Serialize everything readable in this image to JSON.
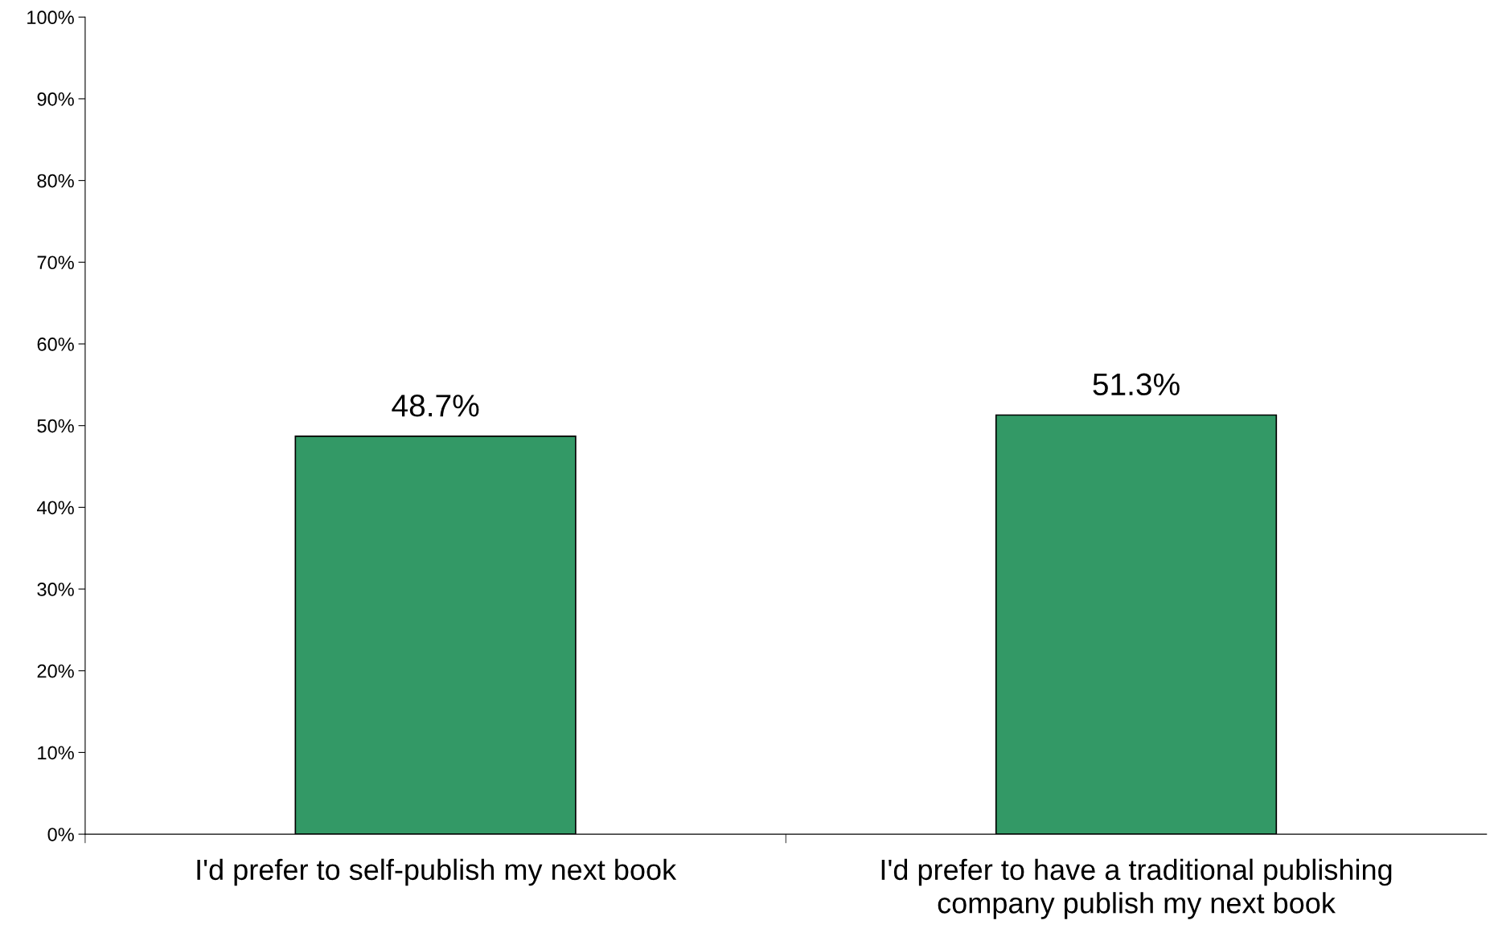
{
  "chart_data": {
    "type": "bar",
    "categories": [
      "I'd prefer to self-publish my next book",
      "I'd prefer to have a traditional publishing\ncompany publish my next book"
    ],
    "values": [
      48.7,
      51.3
    ],
    "value_labels": [
      "48.7%",
      "51.3%"
    ],
    "color": "#339966",
    "ylim": [
      0,
      100
    ],
    "yticks": [
      {
        "value": 0,
        "label": "0%"
      },
      {
        "value": 10,
        "label": "10%"
      },
      {
        "value": 20,
        "label": "20%"
      },
      {
        "value": 30,
        "label": "30%"
      },
      {
        "value": 40,
        "label": "40%"
      },
      {
        "value": 50,
        "label": "50%"
      },
      {
        "value": 60,
        "label": "60%"
      },
      {
        "value": 70,
        "label": "70%"
      },
      {
        "value": 80,
        "label": "80%"
      },
      {
        "value": 90,
        "label": "90%"
      },
      {
        "value": 100,
        "label": "100%"
      }
    ],
    "grid": false,
    "legend": false
  }
}
